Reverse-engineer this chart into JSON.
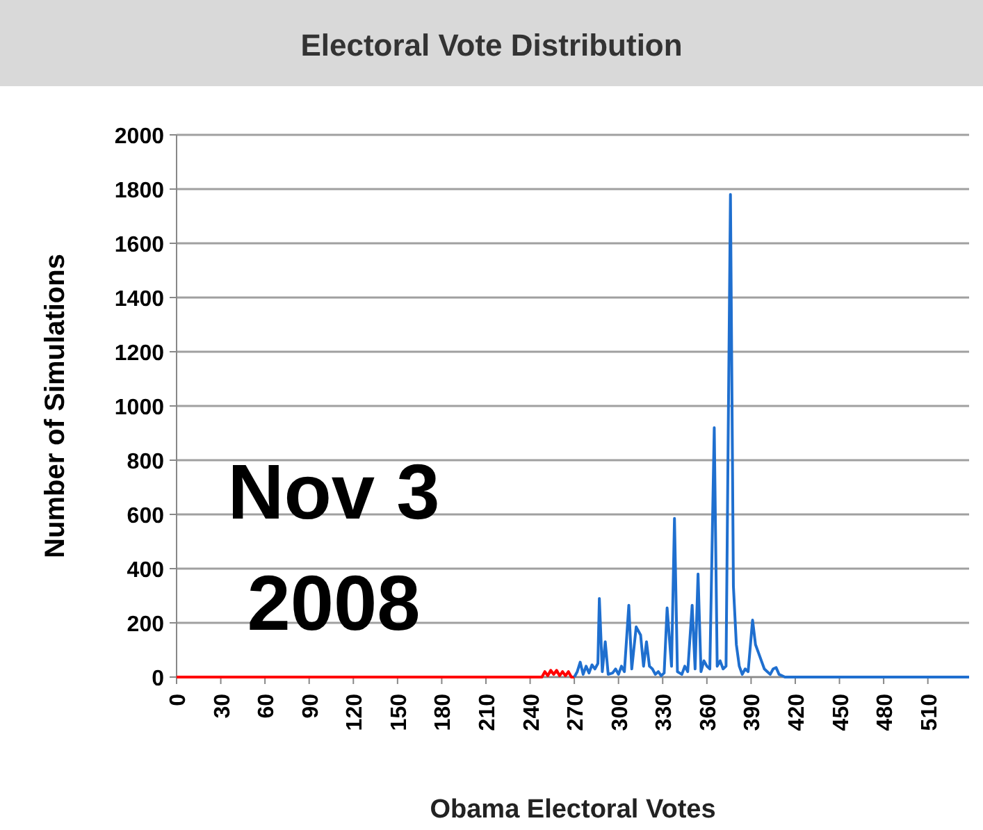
{
  "chart_data": {
    "type": "line",
    "title": "Electoral Vote Distribution",
    "xlabel": "Obama Electoral Votes",
    "ylabel": "Number of Simulations",
    "annotations": [
      "Nov 3",
      "2008"
    ],
    "xlim": [
      0,
      538
    ],
    "xticks": [
      0,
      30,
      60,
      90,
      120,
      150,
      180,
      210,
      240,
      270,
      300,
      330,
      360,
      390,
      420,
      450,
      480,
      510
    ],
    "ylim": [
      0,
      2000
    ],
    "yticks": [
      0,
      200,
      400,
      600,
      800,
      1000,
      1200,
      1400,
      1600,
      1800,
      2000
    ],
    "grid": "y",
    "marker": "none",
    "line_style": "solid",
    "series": [
      {
        "color": "#ff0000",
        "x": [
          0,
          248,
          250,
          252,
          254,
          256,
          258,
          260,
          262,
          264,
          266,
          268,
          270
        ],
        "values": [
          0,
          0,
          20,
          5,
          25,
          10,
          25,
          5,
          20,
          5,
          20,
          0,
          0
        ]
      },
      {
        "color": "#1f6fcf",
        "x": [
          270,
          272,
          274,
          276,
          278,
          280,
          282,
          284,
          286,
          287,
          289,
          291,
          293,
          296,
          298,
          300,
          302,
          304,
          307,
          309,
          312,
          315,
          317,
          319,
          321,
          323,
          325,
          327,
          329,
          331,
          333,
          336,
          338,
          340,
          343,
          345,
          347,
          350,
          352,
          354,
          356,
          358,
          360,
          362,
          365,
          367,
          369,
          371,
          373,
          376,
          378,
          380,
          382,
          384,
          386,
          388,
          391,
          393,
          395,
          397,
          399,
          401,
          403,
          405,
          407,
          409,
          411,
          413,
          538
        ],
        "values": [
          0,
          20,
          55,
          10,
          40,
          15,
          45,
          30,
          50,
          290,
          20,
          130,
          10,
          15,
          30,
          10,
          40,
          20,
          265,
          30,
          185,
          155,
          40,
          130,
          40,
          30,
          10,
          20,
          5,
          15,
          255,
          40,
          585,
          20,
          10,
          40,
          20,
          265,
          30,
          380,
          20,
          60,
          40,
          30,
          920,
          40,
          60,
          30,
          40,
          1780,
          335,
          120,
          40,
          10,
          30,
          20,
          210,
          120,
          90,
          60,
          30,
          20,
          10,
          30,
          35,
          10,
          5,
          0,
          0
        ]
      }
    ]
  }
}
